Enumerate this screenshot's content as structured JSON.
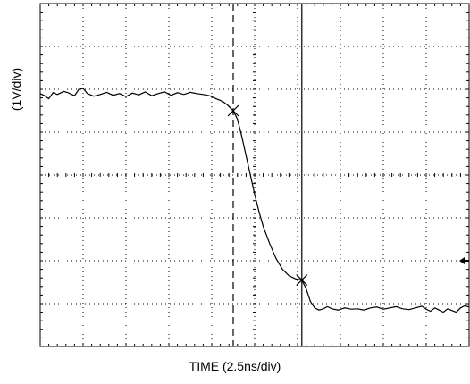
{
  "chart_data": {
    "type": "line",
    "xlabel": "TIME (2.5ns/div)",
    "ylabel": "(1V/div)",
    "x_divisions": 10,
    "y_divisions": 8,
    "grid": true,
    "cursors": {
      "dashed_division": 4.5,
      "solid_division": 6.1,
      "marker1": [
        4.5,
        5.5
      ],
      "marker2": [
        6.1,
        1.55
      ]
    },
    "series": [
      {
        "points": [
          [
            0.0,
            5.9
          ],
          [
            0.1,
            5.85
          ],
          [
            0.2,
            5.78
          ],
          [
            0.3,
            5.92
          ],
          [
            0.4,
            5.88
          ],
          [
            0.55,
            5.95
          ],
          [
            0.65,
            5.92
          ],
          [
            0.8,
            5.85
          ],
          [
            0.9,
            6.0
          ],
          [
            1.0,
            6.02
          ],
          [
            1.1,
            5.9
          ],
          [
            1.25,
            5.84
          ],
          [
            1.4,
            5.88
          ],
          [
            1.55,
            5.93
          ],
          [
            1.7,
            5.86
          ],
          [
            1.85,
            5.9
          ],
          [
            2.0,
            5.83
          ],
          [
            2.15,
            5.91
          ],
          [
            2.3,
            5.87
          ],
          [
            2.45,
            5.94
          ],
          [
            2.6,
            5.85
          ],
          [
            2.75,
            5.9
          ],
          [
            2.9,
            5.94
          ],
          [
            3.05,
            5.86
          ],
          [
            3.2,
            5.92
          ],
          [
            3.35,
            5.88
          ],
          [
            3.5,
            5.93
          ],
          [
            3.65,
            5.9
          ],
          [
            3.8,
            5.88
          ],
          [
            3.95,
            5.85
          ],
          [
            4.1,
            5.78
          ],
          [
            4.25,
            5.72
          ],
          [
            4.38,
            5.62
          ],
          [
            4.5,
            5.5
          ],
          [
            4.6,
            5.3
          ],
          [
            4.7,
            4.9
          ],
          [
            4.8,
            4.45
          ],
          [
            4.9,
            4.0
          ],
          [
            5.0,
            3.55
          ],
          [
            5.1,
            3.15
          ],
          [
            5.2,
            2.8
          ],
          [
            5.35,
            2.4
          ],
          [
            5.5,
            2.05
          ],
          [
            5.65,
            1.8
          ],
          [
            5.8,
            1.65
          ],
          [
            5.95,
            1.58
          ],
          [
            6.1,
            1.55
          ],
          [
            6.2,
            1.35
          ],
          [
            6.3,
            1.05
          ],
          [
            6.4,
            0.9
          ],
          [
            6.5,
            0.85
          ],
          [
            6.6,
            0.88
          ],
          [
            6.7,
            0.93
          ],
          [
            6.8,
            0.88
          ],
          [
            6.95,
            0.85
          ],
          [
            7.1,
            0.9
          ],
          [
            7.25,
            0.87
          ],
          [
            7.4,
            0.88
          ],
          [
            7.55,
            0.85
          ],
          [
            7.7,
            0.9
          ],
          [
            7.85,
            0.92
          ],
          [
            8.0,
            0.87
          ],
          [
            8.15,
            0.9
          ],
          [
            8.3,
            0.93
          ],
          [
            8.45,
            0.88
          ],
          [
            8.6,
            0.86
          ],
          [
            8.75,
            0.9
          ],
          [
            8.9,
            0.94
          ],
          [
            9.0,
            0.87
          ],
          [
            9.1,
            0.82
          ],
          [
            9.2,
            0.9
          ],
          [
            9.3,
            0.85
          ],
          [
            9.4,
            0.8
          ],
          [
            9.5,
            0.88
          ],
          [
            9.6,
            0.84
          ],
          [
            9.7,
            0.8
          ],
          [
            9.8,
            0.9
          ],
          [
            9.9,
            0.95
          ],
          [
            10.0,
            0.92
          ]
        ]
      }
    ]
  }
}
